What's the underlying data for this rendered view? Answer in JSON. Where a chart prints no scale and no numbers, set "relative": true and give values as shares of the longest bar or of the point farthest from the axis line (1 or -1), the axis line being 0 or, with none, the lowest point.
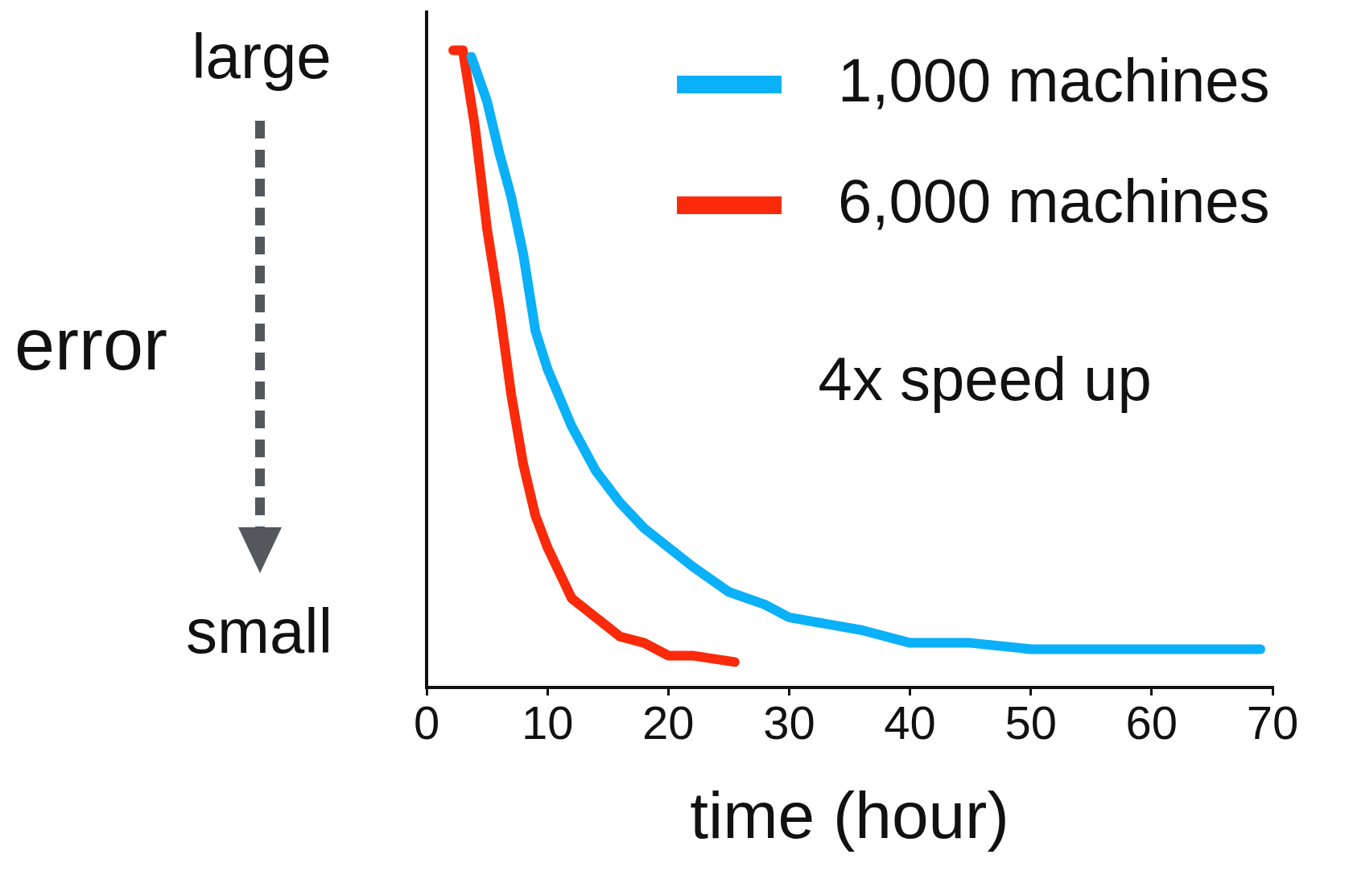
{
  "chart_data": {
    "type": "line",
    "relative": true,
    "xlabel": "time (hour)",
    "ylabel": "error",
    "xlim": [
      0,
      70
    ],
    "xticks": [
      0,
      10,
      20,
      30,
      40,
      50,
      60,
      70
    ],
    "annotations": [
      "large",
      "small",
      "4x speed up"
    ],
    "legend": "top right",
    "grid": false,
    "marker": "none",
    "line_style": "solid",
    "series": [
      {
        "name": "1,000 machines",
        "color": "#0ab0f8",
        "x": [
          3.7,
          5,
          6,
          7,
          8,
          9,
          10,
          12,
          14,
          16,
          18,
          20,
          22,
          25,
          28,
          30,
          33,
          36,
          40,
          45,
          50,
          55,
          60,
          65,
          69
        ],
        "values": [
          0.99,
          0.92,
          0.84,
          0.77,
          0.68,
          0.56,
          0.5,
          0.41,
          0.34,
          0.29,
          0.25,
          0.22,
          0.19,
          0.15,
          0.13,
          0.11,
          0.1,
          0.09,
          0.07,
          0.07,
          0.06,
          0.06,
          0.06,
          0.06,
          0.06
        ]
      },
      {
        "name": "6,000 machines",
        "color": "#fa2a0a",
        "x": [
          2.2,
          3,
          4,
          5,
          6,
          7,
          8,
          9,
          10,
          11,
          12,
          14,
          16,
          18,
          20,
          22,
          25.5
        ],
        "values": [
          1,
          1,
          0.88,
          0.72,
          0.6,
          0.46,
          0.35,
          0.27,
          0.22,
          0.18,
          0.14,
          0.11,
          0.08,
          0.07,
          0.05,
          0.05,
          0.04
        ]
      }
    ]
  }
}
